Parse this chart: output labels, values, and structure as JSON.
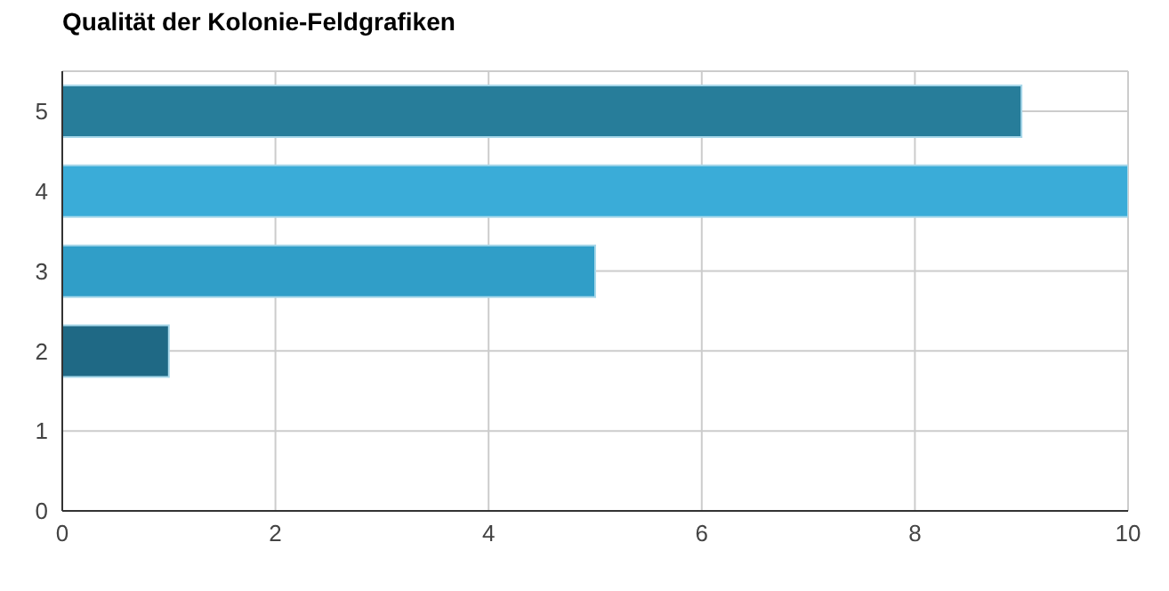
{
  "chart_data": {
    "type": "bar",
    "orientation": "horizontal",
    "title": "Qualität der Kolonie-Feldgrafiken",
    "categories": [
      "5",
      "4",
      "3",
      "2",
      "1",
      "0"
    ],
    "values": [
      9,
      10,
      5,
      1,
      0,
      0
    ],
    "colors": [
      "#277d9a",
      "#3aacd8",
      "#309ec8",
      "#1f6985",
      "#309ec8",
      "#309ec8"
    ],
    "xlim": [
      0,
      10
    ],
    "xticks": [
      0,
      2,
      4,
      6,
      8,
      10
    ],
    "grid": true
  }
}
